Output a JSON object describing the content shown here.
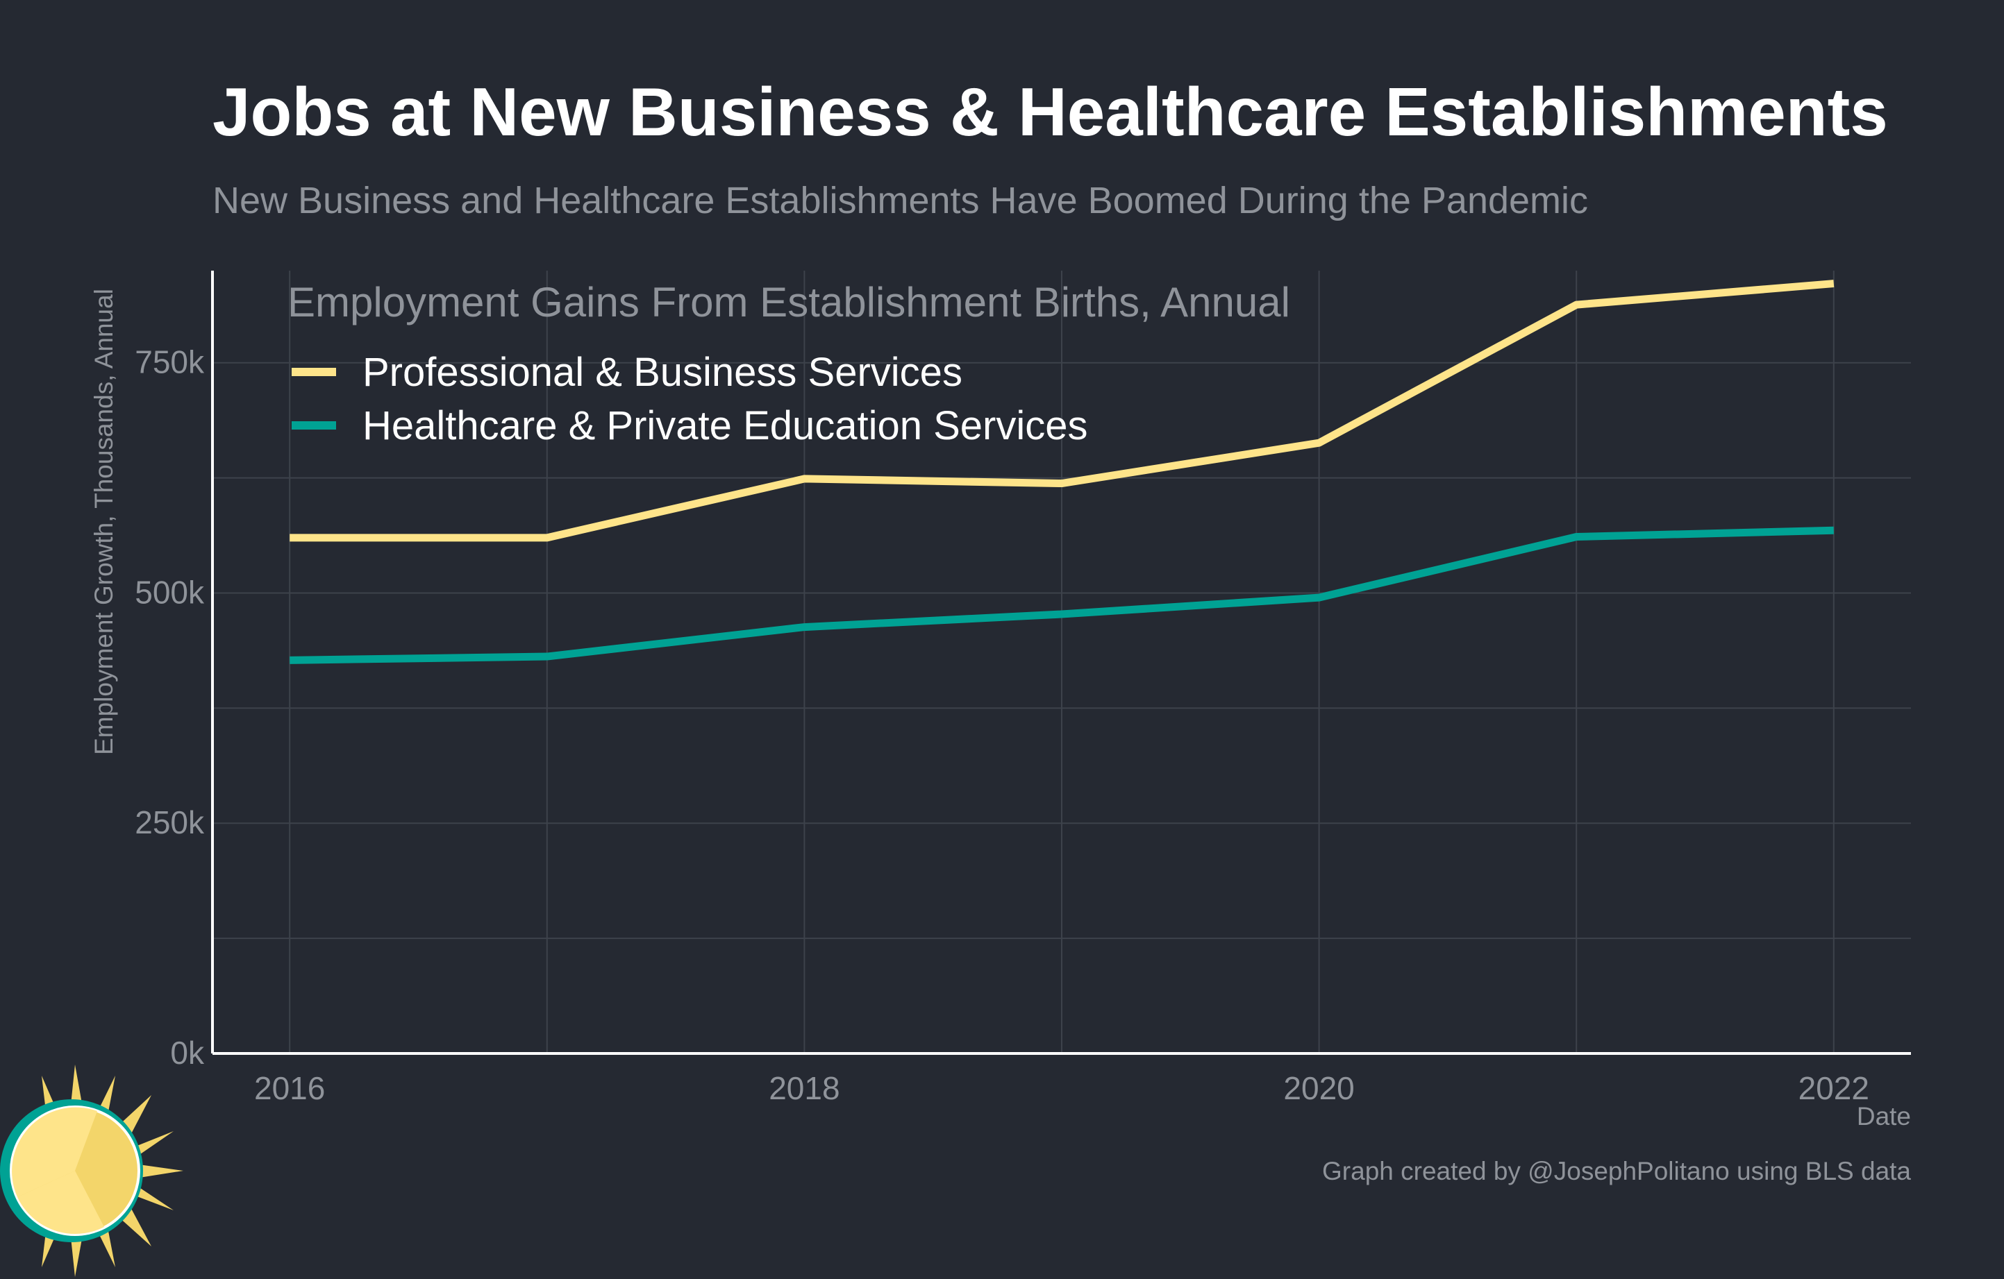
{
  "title": "Jobs at New Business & Healthcare Establishments",
  "subtitle": "New Business and Healthcare Establishments Have Boomed During the Pandemic",
  "credit": "Graph created by @JosephPolitano using BLS data",
  "chart_data": {
    "type": "line",
    "legend_title": "Employment Gains From Establishment Births, Annual",
    "legend_position": "top-left",
    "xlabel": "Date",
    "ylabel": "Employment Growth, Thousands, Annual",
    "x": [
      2016,
      2017,
      2018,
      2019,
      2020,
      2021,
      2022
    ],
    "xlim": [
      2015.7,
      2022.3
    ],
    "ylim": [
      0,
      850
    ],
    "x_ticks": [
      2016,
      2018,
      2020,
      2022
    ],
    "x_tick_labels": [
      "2016",
      "2018",
      "2020",
      "2022"
    ],
    "y_ticks": [
      0,
      250,
      500,
      750
    ],
    "y_tick_labels": [
      "0k",
      "250k",
      "500k",
      "750k"
    ],
    "grid": true,
    "series": [
      {
        "name": "Professional & Business Services",
        "color": "#FEE48A",
        "values": [
          560,
          560,
          624,
          619,
          663,
          813,
          836
        ]
      },
      {
        "name": "Healthcare & Private Education Services",
        "color": "#00A294",
        "values": [
          427,
          431,
          463,
          477,
          495,
          561,
          568
        ]
      }
    ],
    "colors": {
      "background": "#252932",
      "grid": "#3d424b",
      "axis": "#ffffff",
      "muted_text": "#8f939a"
    }
  }
}
